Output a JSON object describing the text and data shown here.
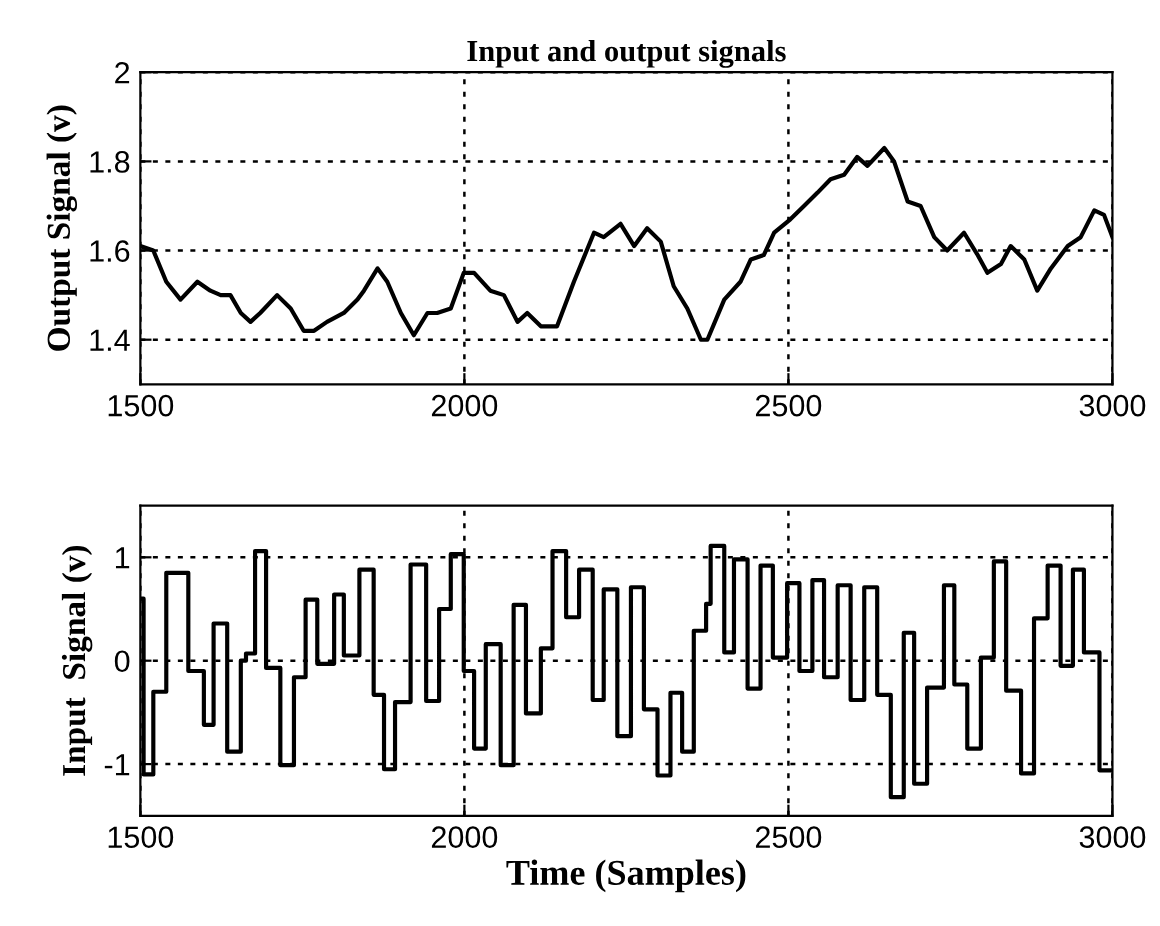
{
  "chart_data": [
    {
      "type": "line",
      "title": "Input and output signals",
      "ylabel": "Output Signal (v)",
      "xlim": [
        1500,
        3000
      ],
      "ylim": [
        1.3,
        2
      ],
      "xticks": [
        1500,
        2000,
        2500,
        3000
      ],
      "yticks": [
        1.4,
        1.6,
        1.8,
        2
      ],
      "grid": true,
      "line_style": "solid",
      "series": [
        {
          "color": "#000000",
          "x": [
            1500,
            1520,
            1540,
            1562,
            1588,
            1608,
            1624,
            1639,
            1655,
            1670,
            1685,
            1711,
            1732,
            1752,
            1768,
            1788,
            1814,
            1835,
            1845,
            1866,
            1881,
            1902,
            1922,
            1943,
            1958,
            1979,
            1999,
            2015,
            2040,
            2061,
            2082,
            2097,
            2118,
            2143,
            2169,
            2200,
            2215,
            2241,
            2262,
            2282,
            2303,
            2323,
            2344,
            2365,
            2375,
            2401,
            2426,
            2442,
            2462,
            2478,
            2503,
            2524,
            2545,
            2565,
            2586,
            2606,
            2622,
            2648,
            2663,
            2684,
            2704,
            2725,
            2745,
            2771,
            2792,
            2807,
            2828,
            2843,
            2864,
            2884,
            2905,
            2931,
            2951,
            2972,
            2987,
            3000
          ],
          "values": [
            1.61,
            1.6,
            1.53,
            1.49,
            1.53,
            1.51,
            1.5,
            1.5,
            1.46,
            1.44,
            1.46,
            1.5,
            1.47,
            1.42,
            1.42,
            1.44,
            1.46,
            1.49,
            1.51,
            1.56,
            1.53,
            1.46,
            1.41,
            1.46,
            1.46,
            1.47,
            1.55,
            1.55,
            1.51,
            1.5,
            1.44,
            1.46,
            1.43,
            1.43,
            1.53,
            1.64,
            1.63,
            1.66,
            1.61,
            1.65,
            1.62,
            1.52,
            1.47,
            1.4,
            1.4,
            1.49,
            1.53,
            1.58,
            1.59,
            1.64,
            1.67,
            1.7,
            1.73,
            1.76,
            1.77,
            1.81,
            1.79,
            1.83,
            1.8,
            1.71,
            1.7,
            1.63,
            1.6,
            1.64,
            1.59,
            1.55,
            1.57,
            1.61,
            1.58,
            1.51,
            1.56,
            1.61,
            1.63,
            1.69,
            1.68,
            1.63
          ]
        }
      ]
    },
    {
      "type": "step",
      "ylabel": "Input  Signal (v)",
      "xlabel": "Time (Samples)",
      "xlim": [
        1500,
        3000
      ],
      "ylim": [
        -1.5,
        1.5
      ],
      "xticks": [
        1500,
        2000,
        2500,
        3000
      ],
      "yticks": [
        -1,
        0,
        1
      ],
      "grid": true,
      "line_style": "solid",
      "series": [
        {
          "color": "#000000",
          "x": [
            1500,
            1505,
            1520,
            1540,
            1574,
            1598,
            1613,
            1634,
            1655,
            1663,
            1677,
            1694,
            1716,
            1737,
            1755,
            1773,
            1799,
            1814,
            1838,
            1860,
            1876,
            1893,
            1917,
            1941,
            1961,
            1979,
            1999,
            2015,
            2033,
            2056,
            2076,
            2095,
            2118,
            2136,
            2157,
            2177,
            2198,
            2215,
            2236,
            2257,
            2277,
            2298,
            2318,
            2336,
            2354,
            2373,
            2380,
            2401,
            2416,
            2437,
            2457,
            2476,
            2498,
            2517,
            2537,
            2555,
            2576,
            2596,
            2617,
            2637,
            2658,
            2678,
            2694,
            2714,
            2740,
            2756,
            2776,
            2797,
            2817,
            2836,
            2859,
            2879,
            2900,
            2920,
            2939,
            2956,
            2980,
            3000
          ],
          "values": [
            0.6,
            -1.1,
            -0.3,
            0.85,
            -0.1,
            -0.62,
            0.36,
            -0.88,
            0.0,
            0.07,
            1.06,
            -0.07,
            -1.01,
            -0.16,
            0.59,
            -0.03,
            0.64,
            0.05,
            0.88,
            -0.33,
            -1.05,
            -0.4,
            0.93,
            -0.39,
            0.5,
            1.03,
            -0.1,
            -0.85,
            0.16,
            -1.01,
            0.54,
            -0.51,
            0.12,
            1.06,
            0.42,
            0.88,
            -0.38,
            0.69,
            -0.73,
            0.71,
            -0.47,
            -1.11,
            -0.31,
            -0.88,
            0.29,
            0.55,
            1.11,
            0.08,
            0.98,
            -0.27,
            0.92,
            0.03,
            0.75,
            -0.1,
            0.78,
            -0.16,
            0.73,
            -0.38,
            0.71,
            -0.33,
            -1.32,
            0.27,
            -1.19,
            -0.26,
            0.73,
            -0.23,
            -0.85,
            0.03,
            0.96,
            -0.29,
            -1.09,
            0.41,
            0.92,
            -0.05,
            0.88,
            0.08,
            -1.06,
            -1.06
          ]
        }
      ]
    }
  ]
}
